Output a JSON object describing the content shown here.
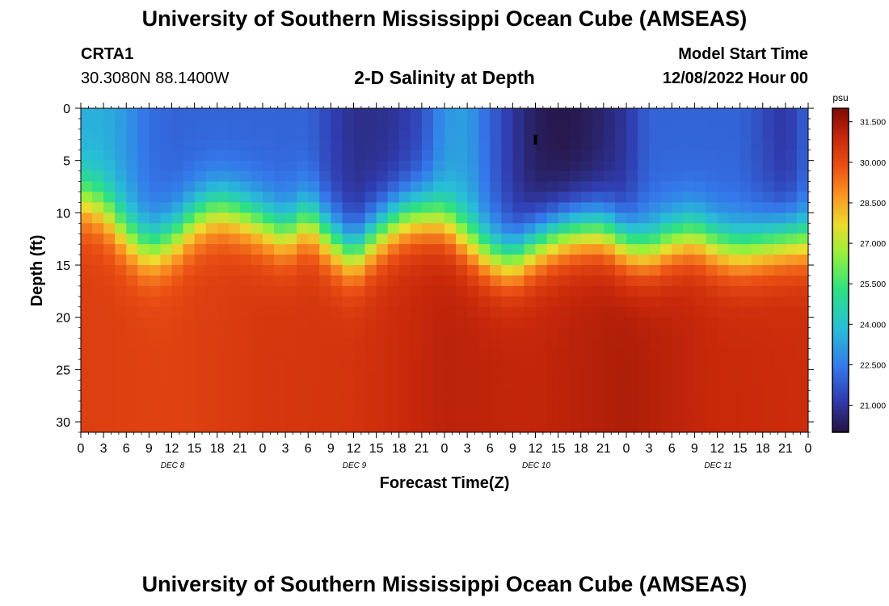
{
  "header": {
    "title": "University of Southern Mississippi Ocean Cube (AMSEAS)",
    "station_id": "CRTA1",
    "coordinates": "30.3080N  88.1400W",
    "plot_title": "2-D Salinity at Depth",
    "model_start_label": "Model Start Time",
    "model_start_value": "12/08/2022 Hour 00"
  },
  "footer": {
    "title": "University of Southern Mississippi Ocean Cube (AMSEAS)"
  },
  "chart_data": {
    "type": "heatmap",
    "title": "2-D Salinity at Depth",
    "xlabel": "Forecast Time(Z)",
    "ylabel": "Depth (ft)",
    "x_hours_range": [
      0,
      96
    ],
    "x_tick_step_hours": 3,
    "x_tick_labels": [
      "0",
      "3",
      "6",
      "9",
      "12",
      "15",
      "18",
      "21",
      "0",
      "3",
      "6",
      "9",
      "12",
      "15",
      "18",
      "21",
      "0",
      "3",
      "6",
      "9",
      "12",
      "15",
      "18",
      "21",
      "0",
      "3",
      "6",
      "9",
      "12",
      "15",
      "18",
      "21",
      "0"
    ],
    "day_labels": [
      {
        "label": "DEC 8",
        "hour": 12
      },
      {
        "label": "DEC 9",
        "hour": 36
      },
      {
        "label": "DEC 10",
        "hour": 60
      },
      {
        "label": "DEC 11",
        "hour": 84
      }
    ],
    "ylim": [
      0,
      31
    ],
    "y_ticks": [
      0,
      5,
      10,
      15,
      20,
      25,
      30
    ],
    "y_tick_labels": [
      "0",
      "5",
      "10",
      "15",
      "20",
      "25",
      "30"
    ],
    "colorbar": {
      "unit": "psu",
      "min": 20.0,
      "max": 32.0,
      "tick_values": [
        31.5,
        30.0,
        28.5,
        27.0,
        25.5,
        24.0,
        22.5,
        21.0
      ],
      "tick_labels": [
        "31.500",
        "30.000",
        "28.500",
        "27.000",
        "25.500",
        "24.000",
        "22.500",
        "21.000"
      ]
    },
    "halocline": {
      "description": "approximate depth (ft) of the fresh/salty transition vs forecast hour",
      "hours": [
        0,
        3,
        6,
        9,
        12,
        15,
        18,
        21,
        24,
        27,
        30,
        33,
        36,
        39,
        42,
        45,
        48,
        51,
        54,
        57,
        60,
        63,
        66,
        69,
        72,
        75,
        78,
        81,
        84,
        87,
        90,
        93,
        96
      ],
      "depth_ft": [
        8.5,
        9.5,
        12.0,
        13.5,
        12.5,
        10.5,
        9.5,
        10.0,
        11.0,
        12.0,
        10.5,
        12.5,
        14.0,
        12.0,
        10.5,
        10.0,
        10.5,
        12.5,
        14.0,
        14.5,
        13.0,
        12.0,
        11.5,
        11.5,
        13.0,
        13.5,
        12.5,
        12.0,
        13.0,
        13.5,
        13.0,
        12.5,
        12.5
      ]
    },
    "surface_salinity_psu": {
      "hours": [
        0,
        3,
        6,
        9,
        12,
        15,
        18,
        21,
        24,
        27,
        30,
        33,
        36,
        39,
        42,
        45,
        48,
        51,
        54,
        57,
        60,
        63,
        66,
        69,
        72,
        75,
        78,
        81,
        84,
        87,
        90,
        93,
        96
      ],
      "values": [
        23.5,
        23.5,
        23.0,
        22.2,
        22.0,
        22.0,
        22.0,
        22.0,
        22.0,
        22.0,
        22.0,
        21.3,
        20.8,
        20.8,
        21.0,
        21.5,
        23.0,
        23.2,
        22.0,
        21.0,
        20.3,
        20.1,
        20.2,
        20.5,
        21.0,
        22.0,
        22.0,
        22.0,
        22.0,
        22.0,
        21.5,
        21.0,
        22.0
      ]
    },
    "deep_salinity_psu": {
      "hours": [
        0,
        12,
        24,
        36,
        48,
        60,
        72,
        84,
        96
      ],
      "values": [
        30.3,
        30.2,
        30.5,
        30.6,
        31.1,
        31.0,
        31.3,
        30.9,
        30.8
      ]
    },
    "marker": {
      "hour": 60,
      "depth_ft": 3
    }
  }
}
